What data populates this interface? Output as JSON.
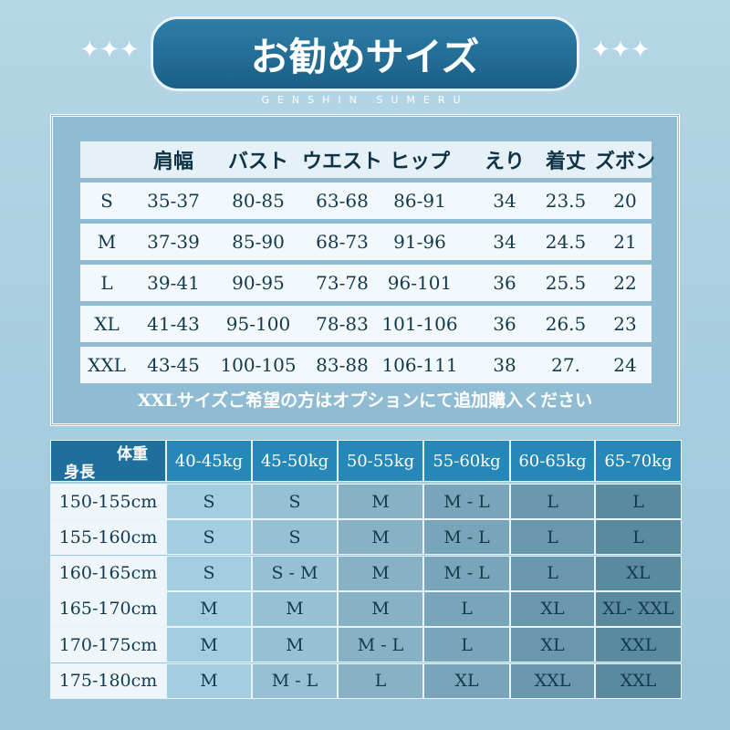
{
  "header": {
    "title": "お勧めサイズ",
    "subtitle": "GENSHIN SUMERU"
  },
  "size_table": {
    "columns": [
      "肩幅",
      "バスト",
      "ウエスト",
      "ヒップ",
      "えり",
      "着丈",
      "ズボン"
    ],
    "rows": [
      [
        "S",
        "35-37",
        "80-85",
        "63-68",
        "86-91",
        "34",
        "23.5",
        "20"
      ],
      [
        "M",
        "37-39",
        "85-90",
        "68-73",
        "91-96",
        "34",
        "24.5",
        "21"
      ],
      [
        "L",
        "39-41",
        "90-95",
        "73-78",
        "96-101",
        "36",
        "25.5",
        "22"
      ],
      [
        "XL",
        "41-43",
        "95-100",
        "78-83",
        "101-106",
        "36",
        "26.5",
        "23"
      ],
      [
        "XXL",
        "43-45",
        "100-105",
        "83-88",
        "106-111",
        "38",
        "27.",
        "24"
      ]
    ],
    "note": "XXLサイズご希望の方はオプションにて追加購入ください"
  },
  "matrix": {
    "weight_label": "体重",
    "height_label": "身長",
    "columns": [
      "40-45kg",
      "45-50kg",
      "50-55kg",
      "55-60kg",
      "60-65kg",
      "65-70kg"
    ],
    "rows": [
      [
        "150-155cm",
        "S",
        "S",
        "M",
        "M - L",
        "L",
        "L"
      ],
      [
        "155-160cm",
        "S",
        "S",
        "M",
        "M - L",
        "L",
        "L"
      ],
      [
        "160-165cm",
        "S",
        "S - M",
        "M",
        "M - L",
        "L",
        "XL"
      ],
      [
        "165-170cm",
        "M",
        "M",
        "M",
        "L",
        "XL",
        "XL- XXL"
      ],
      [
        "170-175cm",
        "M",
        "M",
        "M - L",
        "L",
        "XL",
        "XXL"
      ],
      [
        "175-180cm",
        "M",
        "M - L",
        "L",
        "XL",
        "XXL",
        "XXL"
      ]
    ]
  }
}
